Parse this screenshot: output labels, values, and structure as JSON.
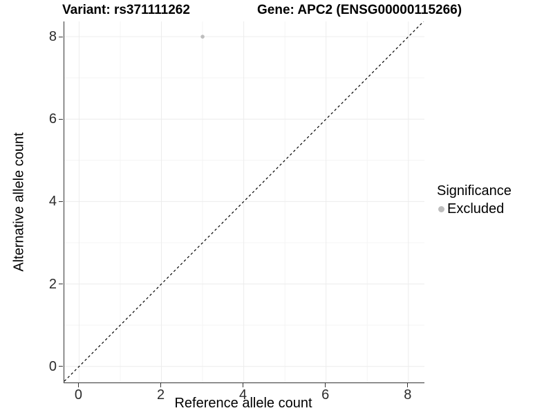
{
  "header": {
    "variant_title": "Variant: rs371111262",
    "gene_title": "Gene: APC2 (ENSG00000115266)"
  },
  "chart_data": {
    "type": "scatter",
    "title": "Variant: rs371111262    Gene: APC2 (ENSG00000115266)",
    "xlabel": "Reference allele count",
    "ylabel": "Alternative allele count",
    "xlim": [
      -0.36,
      8.39
    ],
    "ylim": [
      -0.39,
      8.37
    ],
    "x_ticks": [
      0,
      2,
      4,
      6,
      8
    ],
    "y_ticks": [
      0,
      2,
      4,
      6,
      8
    ],
    "x_minor_ticks": [
      1,
      3,
      5,
      7
    ],
    "y_minor_ticks": [
      1,
      3,
      5,
      7
    ],
    "grid": true,
    "series": [
      {
        "name": "Excluded",
        "color": "#bdbdbd",
        "marker": "circle",
        "points": [
          {
            "x": 3,
            "y": 8
          }
        ]
      }
    ],
    "reference_line": {
      "type": "identity",
      "equation": "y = x",
      "style": "dashed",
      "color": "#000000"
    },
    "legend": {
      "title": "Significance",
      "position": "right",
      "items": [
        {
          "label": "Excluded",
          "color": "#bdbdbd",
          "marker": "circle"
        }
      ]
    }
  },
  "colors": {
    "background": "#ffffff",
    "grid_major": "#ececec",
    "grid_minor": "#f4f4f4",
    "axis_line": "#333333",
    "tick_text": "#2b2b2b",
    "point": "#bdbdbd"
  }
}
